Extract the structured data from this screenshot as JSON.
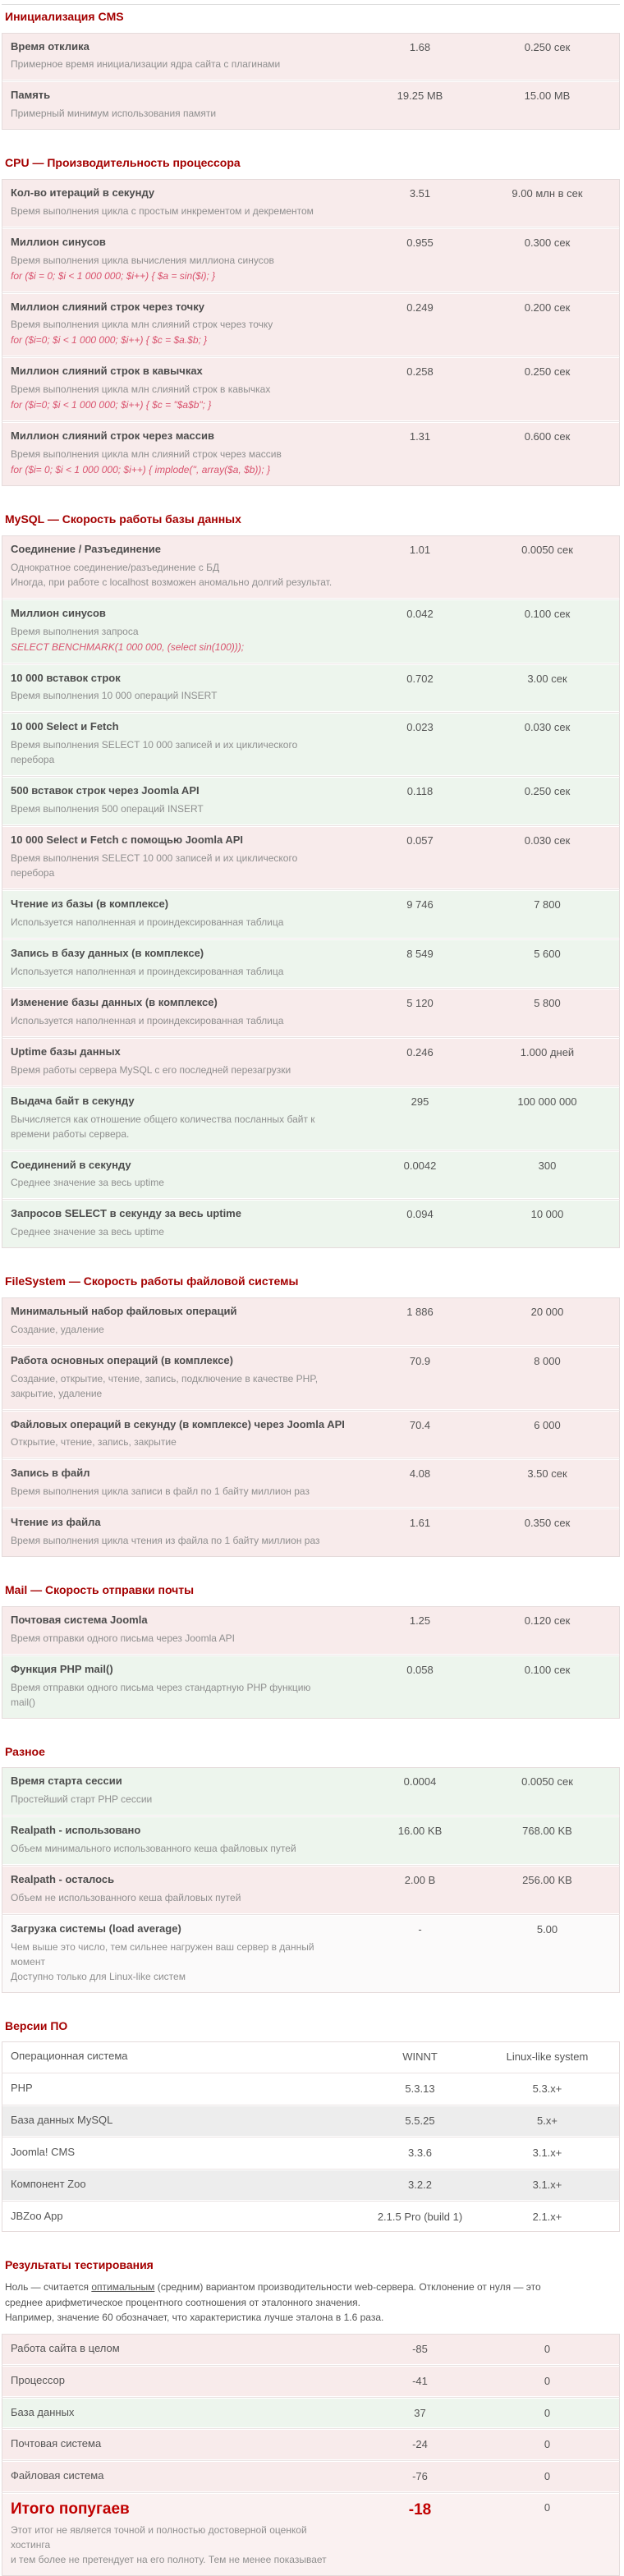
{
  "report": {
    "colors": {
      "section_header_red": "#a40000",
      "total_red": "#c00000",
      "row_bad_pink": "#f8ebeb",
      "row_good_green": "#edf5ed",
      "row_neutral": "#fbfafa",
      "row_alt_gray": "#ededed",
      "code_text_pink": "#d9536e",
      "desc_gray": "#8f8f8f"
    },
    "sections": [
      {
        "id": "cms-init",
        "title": "Инициализация CMS",
        "rows": [
          {
            "title": "Время отклика",
            "desc": [
              "Примерное время инициализации ядра сайта с плагинами"
            ],
            "value": "1.68",
            "norm": "0.250 сек",
            "tone": "bad"
          },
          {
            "title": "Память",
            "desc": [
              "Примерный минимум использования памяти"
            ],
            "value": "19.25 MB",
            "norm": "15.00 MB",
            "tone": "bad"
          }
        ]
      },
      {
        "id": "cpu",
        "title": "CPU — Производительность процессора",
        "rows": [
          {
            "title": "Кол-во итераций в секунду",
            "desc": [
              "Время выполнения цикла с простым инкрементом и декрементом"
            ],
            "value": "3.51",
            "norm": "9.00 млн в сек",
            "tone": "bad"
          },
          {
            "title": "Миллион синусов",
            "desc": [
              "Время выполнения цикла вычисления миллиона синусов"
            ],
            "code": "for ($i = 0; $i < 1 000 000; $i++) { $a = sin($i); }",
            "value": "0.955",
            "norm": "0.300 сек",
            "tone": "bad"
          },
          {
            "title": "Миллион слияний строк через точку",
            "desc": [
              "Время выполнения цикла млн слияний строк через точку"
            ],
            "code": "for ($i=0; $i < 1 000 000; $i++) { $c = $a.$b; }",
            "value": "0.249",
            "norm": "0.200 сек",
            "tone": "bad"
          },
          {
            "title": "Миллион слияний строк в кавычках",
            "desc": [
              "Время выполнения цикла млн слияний строк в кавычках"
            ],
            "code": "for ($i=0; $i < 1 000 000; $i++) { $c = \"$a$b\"; }",
            "value": "0.258",
            "norm": "0.250 сек",
            "tone": "bad"
          },
          {
            "title": "Миллион слияний строк через массив",
            "desc": [
              "Время выполнения цикла млн слияний строк через массив"
            ],
            "code": "for ($i= 0; $i < 1 000 000; $i++) { implode('', array($a, $b)); }",
            "value": "1.31",
            "norm": "0.600 сек",
            "tone": "bad"
          }
        ]
      },
      {
        "id": "mysql",
        "title": "MySQL — Скорость работы базы данных",
        "rows": [
          {
            "title": "Соединение / Разъединение",
            "desc": [
              "Однократное соединение/разъединение с БД",
              "Иногда, при работе с localhost возможен аномально долгий результат."
            ],
            "value": "1.01",
            "norm": "0.0050 сек",
            "tone": "bad"
          },
          {
            "title": "Миллион синусов",
            "desc": [
              "Время выполнения запроса"
            ],
            "code": "SELECT BENCHMARK(1 000 000, (select sin(100)));",
            "value": "0.042",
            "norm": "0.100 сек",
            "tone": "good"
          },
          {
            "title": "10 000 вставок строк",
            "desc": [
              "Время выполнения 10 000 операций INSERT"
            ],
            "value": "0.702",
            "norm": "3.00 сек",
            "tone": "good"
          },
          {
            "title": "10 000 Select и Fetch",
            "desc": [
              "Время выполнения SELECT 10 000 записей и их циклического",
              "перебора"
            ],
            "value": "0.023",
            "norm": "0.030 сек",
            "tone": "good"
          },
          {
            "title": "500 вставок строк через Joomla API",
            "desc": [
              "Время выполнения 500 операций INSERT"
            ],
            "value": "0.118",
            "norm": "0.250 сек",
            "tone": "good"
          },
          {
            "title": "10 000 Select и Fetch с помощью Joomla API",
            "desc": [
              "Время выполнения SELECT 10 000 записей и их циклического",
              "перебора"
            ],
            "value": "0.057",
            "norm": "0.030 сек",
            "tone": "bad"
          },
          {
            "title": "Чтение из базы (в комплексе)",
            "desc": [
              "Используется наполненная и проиндексированная таблица"
            ],
            "value": "9 746",
            "norm": "7 800",
            "tone": "good"
          },
          {
            "title": "Запись в базу данных (в комплексе)",
            "desc": [
              "Используется наполненная и проиндексированная таблица"
            ],
            "value": "8 549",
            "norm": "5 600",
            "tone": "good"
          },
          {
            "title": "Изменение базы данных (в комплексе)",
            "desc": [
              "Используется наполненная и проиндексированная таблица"
            ],
            "value": "5 120",
            "norm": "5 800",
            "tone": "bad"
          },
          {
            "title": "Uptime базы данных",
            "desc": [
              "Время работы сервера MySQL с его последней перезагрузки"
            ],
            "value": "0.246",
            "norm": "1.000 дней",
            "tone": "bad"
          },
          {
            "title": "Выдача байт в секунду",
            "desc": [
              "Вычисляется как отношение общего количества посланных байт к",
              "времени работы сервера."
            ],
            "value": "295",
            "norm": "100 000 000",
            "tone": "good"
          },
          {
            "title": "Соединений в секунду",
            "desc": [
              "Среднее значение за весь uptime"
            ],
            "value": "0.0042",
            "norm": "300",
            "tone": "good"
          },
          {
            "title": "Запросов SELECT в секунду за весь uptime",
            "desc": [
              "Среднее значение за весь uptime"
            ],
            "value": "0.094",
            "norm": "10 000",
            "tone": "good"
          }
        ]
      },
      {
        "id": "filesystem",
        "title": "FileSystem — Скорость работы файловой системы",
        "rows": [
          {
            "title": "Минимальный набор файловых операций",
            "desc": [
              "Создание, удаление"
            ],
            "value": "1 886",
            "norm": "20 000",
            "tone": "bad"
          },
          {
            "title": "Работа основных операций (в комплексе)",
            "desc": [
              "Создание, открытие, чтение, запись, подключение в качестве PHP,",
              "закрытие, удаление"
            ],
            "value": "70.9",
            "norm": "8 000",
            "tone": "bad"
          },
          {
            "title": "Файловых операций в секунду (в комплексе) через Joomla API",
            "desc": [
              "Открытие, чтение, запись, закрытие"
            ],
            "value": "70.4",
            "norm": "6 000",
            "tone": "bad"
          },
          {
            "title": "Запись в файл",
            "desc": [
              "Время выполнения цикла записи в файл по 1 байту миллион раз"
            ],
            "value": "4.08",
            "norm": "3.50 сек",
            "tone": "bad"
          },
          {
            "title": "Чтение из файла",
            "desc": [
              "Время выполнения цикла чтения из файла по 1 байту миллион раз"
            ],
            "value": "1.61",
            "norm": "0.350 сек",
            "tone": "bad"
          }
        ]
      },
      {
        "id": "mail",
        "title": "Mail — Скорость отправки почты",
        "rows": [
          {
            "title": "Почтовая система Joomla",
            "desc": [
              "Время отправки одного письма через Joomla API"
            ],
            "value": "1.25",
            "norm": "0.120 сек",
            "tone": "bad"
          },
          {
            "title": "Функция PHP mail()",
            "desc": [
              "Время отправки одного письма через стандартную PHP функцию",
              "mail()"
            ],
            "value": "0.058",
            "norm": "0.100 сек",
            "tone": "good"
          }
        ]
      },
      {
        "id": "misc",
        "title": "Разное",
        "rows": [
          {
            "title": "Время старта сессии",
            "desc": [
              "Простейший старт PHP сессии"
            ],
            "value": "0.0004",
            "norm": "0.0050 сек",
            "tone": "good"
          },
          {
            "title": "Realpath - использовано",
            "desc": [
              "Объем минимального использованного кеша файловых путей"
            ],
            "value": "16.00 KB",
            "norm": "768.00 KB",
            "tone": "good"
          },
          {
            "title": "Realpath - осталось",
            "desc": [
              "Объем не использованного кеша файловых путей"
            ],
            "value": "2.00 B",
            "norm": "256.00 KB",
            "tone": "bad"
          },
          {
            "title": "Загрузка системы (load average)",
            "desc": [
              "Чем выше это число, тем сильнее нагружен ваш сервер в данный",
              "момент",
              "Доступно только для Linux-like систем"
            ],
            "value": "-",
            "norm": "5.00",
            "tone": "neutral"
          }
        ]
      },
      {
        "id": "software-versions",
        "title": "Версии ПО",
        "rows": [
          {
            "title": "Операционная система",
            "value": "WINNT",
            "norm": "Linux-like system",
            "tone": "plain",
            "style": "plain"
          },
          {
            "title": "PHP",
            "value": "5.3.13",
            "norm": "5.3.x+",
            "tone": "plain",
            "style": "plain"
          },
          {
            "title": "База данных MySQL",
            "value": "5.5.25",
            "norm": "5.x+",
            "tone": "alt",
            "style": "plain"
          },
          {
            "title": "Joomla! CMS",
            "value": "3.3.6",
            "norm": "3.1.x+",
            "tone": "plain",
            "style": "plain"
          },
          {
            "title": "Компонент Zoo",
            "value": "3.2.2",
            "norm": "3.1.x+",
            "tone": "alt",
            "style": "plain"
          },
          {
            "title": "JBZoo App",
            "value": "2.1.5 Pro (build 1)",
            "norm": "2.1.x+",
            "tone": "plain",
            "style": "plain"
          }
        ]
      },
      {
        "id": "test-results",
        "title": "Результаты тестирования",
        "intro": {
          "line1_before": "Ноль — считается ",
          "line1_underlined": "оптимальным",
          "line1_after": " (средним) вариантом производительности web-сервера. Отклонение от нуля — это",
          "line2": "среднее арифметическое процентного соотношения от эталонного значения.",
          "line3": "Например, значение 60 обозначает, что характеристика лучше эталона в 1.6 раза."
        },
        "rows": [
          {
            "title": "Работа сайта в целом",
            "value": "-85",
            "norm": "0",
            "tone": "bad",
            "style": "plain"
          },
          {
            "title": "Процессор",
            "value": "-41",
            "norm": "0",
            "tone": "bad",
            "style": "plain"
          },
          {
            "title": "База данных",
            "value": "37",
            "norm": "0",
            "tone": "good",
            "style": "plain"
          },
          {
            "title": "Почтовая система",
            "value": "-24",
            "norm": "0",
            "tone": "bad",
            "style": "plain"
          },
          {
            "title": "Файловая система",
            "value": "-76",
            "norm": "0",
            "tone": "bad",
            "style": "plain"
          },
          {
            "title": "Итого попугаев",
            "desc": [
              "Этот итог не является точной и полностью достоверной оценкой",
              "хостинга",
              "и тем более не претендует на его полноту. Тем не менее показывает"
            ],
            "value": "-18",
            "norm": "0",
            "tone": "total",
            "style": "total"
          }
        ]
      }
    ]
  }
}
